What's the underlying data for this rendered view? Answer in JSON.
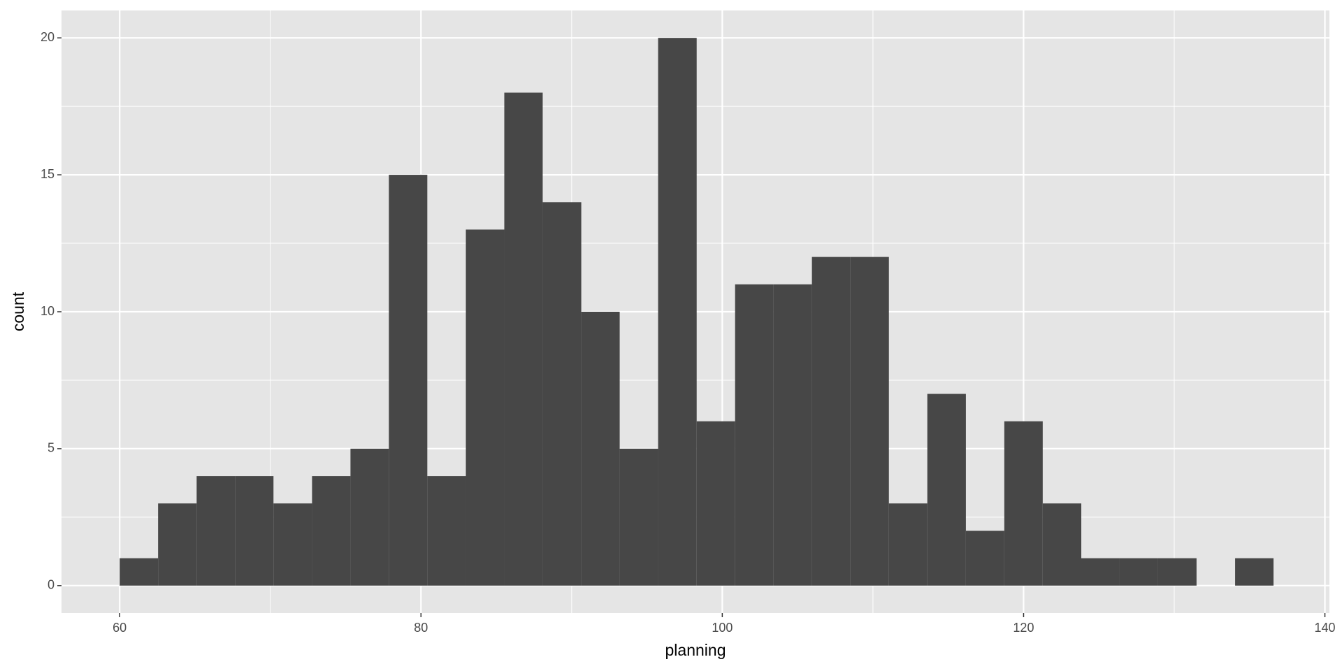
{
  "chart_data": {
    "type": "histogram",
    "x_label": "planning",
    "y_label": "count",
    "bins": [
      60,
      62.55,
      65.11,
      67.66,
      70.21,
      72.77,
      75.32,
      77.87,
      80.42,
      82.98,
      85.53,
      88.08,
      90.64,
      93.19,
      95.74,
      98.3,
      100.85,
      103.4,
      105.95,
      108.51,
      111.06,
      113.61,
      116.17,
      118.72,
      121.27,
      123.83,
      126.38,
      128.93,
      131.48,
      134.04,
      136.59
    ],
    "values": [
      1,
      3,
      4,
      4,
      3,
      4,
      5,
      15,
      4,
      13,
      18,
      14,
      10,
      5,
      20,
      6,
      11,
      11,
      12,
      12,
      3,
      7,
      2,
      6,
      3,
      1,
      1,
      1,
      0,
      1
    ],
    "color": "#474747",
    "xlim": [
      56.14,
      140.3
    ],
    "ylim": [
      -1,
      21
    ],
    "xticks": [
      60,
      80,
      100,
      120,
      140
    ],
    "yticks": [
      0,
      5,
      10,
      15,
      20
    ],
    "minor_xticks": [
      70,
      90,
      110,
      130
    ],
    "minor_yticks": [
      2.5,
      7.5,
      12.5,
      17.5
    ],
    "grid": true,
    "panel_color": "#e5e5e5",
    "grid_color": "#ffffff"
  }
}
